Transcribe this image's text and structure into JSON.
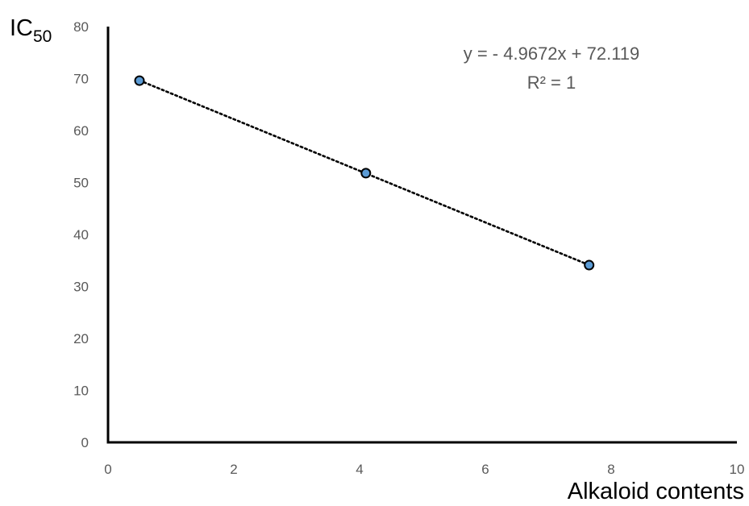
{
  "chart_data": {
    "type": "scatter",
    "title": "",
    "xlabel": "Alkaloid contents",
    "ylabel": {
      "main": "IC",
      "sub": "50"
    },
    "xlim": [
      0,
      10
    ],
    "ylim": [
      0,
      80
    ],
    "xticks": [
      0,
      2,
      4,
      6,
      8,
      10
    ],
    "yticks": [
      0,
      10,
      20,
      30,
      40,
      50,
      60,
      70,
      80
    ],
    "grid": false,
    "legend": "none",
    "series": [
      {
        "points": [
          {
            "x": 0.5,
            "y": 69.6
          },
          {
            "x": 4.1,
            "y": 51.8
          },
          {
            "x": 7.65,
            "y": 34.1
          }
        ],
        "marker_color": "#5b9bd5",
        "marker_edge": "#000000"
      }
    ],
    "trendline": {
      "type": "linear",
      "slope": -4.9672,
      "intercept": 72.119,
      "x_range": [
        0.5,
        7.65
      ],
      "style": "dotted",
      "color": "#000000",
      "equation_label": "y = - 4.9672x + 72.119",
      "r2_label": "R² = 1",
      "label_position": "top-right"
    }
  }
}
